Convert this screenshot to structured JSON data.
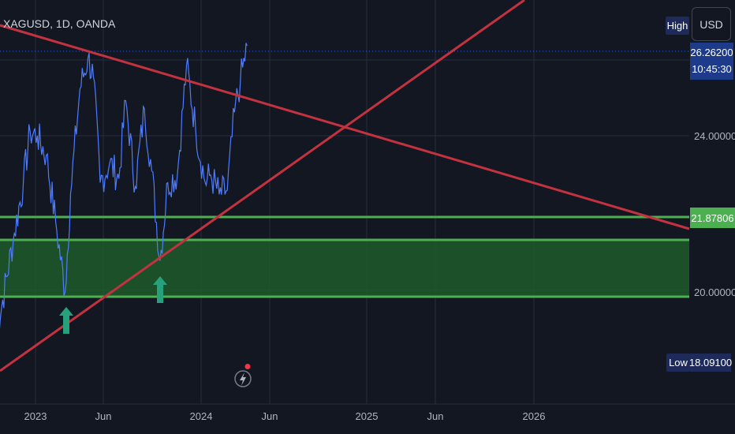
{
  "header": {
    "symbol": "XAGUSD, 1D, OANDA",
    "currency_button": "USD"
  },
  "price_scale": {
    "high_label": "High",
    "low_label": "Low",
    "low_value": "18.09100",
    "last_price": "26.26200",
    "countdown": "10:45:30",
    "ticks": [
      "24.00000",
      "20.00000"
    ],
    "support_level": "21.87806"
  },
  "colors": {
    "background": "#131722",
    "price_line": "#2962ff",
    "trendlines": "#c2323f",
    "zone": "#4caf50",
    "arrows": "#26a17b"
  },
  "icons": {
    "flash": "flash-icon",
    "arrow": "up-arrow-icon"
  },
  "chart_data": {
    "type": "line",
    "title": "XAGUSD, 1D, OANDA",
    "x_ticks": [
      "2023",
      "Jun",
      "2024",
      "Jun",
      "2025",
      "Jun",
      "2026"
    ],
    "y_ticks": [
      24.0,
      20.0
    ],
    "ylim": [
      17.4,
      27.6
    ],
    "grid": true,
    "series": [
      {
        "x": [
          "2022-10-01",
          "2022-10-20",
          "2022-11-15",
          "2022-12-05",
          "2022-12-20",
          "2023-01-05",
          "2023-01-25",
          "2023-02-15",
          "2023-03-08",
          "2023-03-20",
          "2023-04-10",
          "2023-04-28",
          "2023-05-10",
          "2023-05-25",
          "2023-06-15",
          "2023-07-05",
          "2023-07-20",
          "2023-08-10",
          "2023-08-30",
          "2023-09-15",
          "2023-10-03",
          "2023-10-20",
          "2023-11-10",
          "2023-11-30",
          "2023-12-20",
          "2024-01-10",
          "2024-01-22",
          "2024-02-10",
          "2024-02-28",
          "2024-03-15",
          "2024-03-28",
          "2024-04-12"
        ],
        "y": [
          18.2,
          19.8,
          21.5,
          22.8,
          24.1,
          24.0,
          23.5,
          21.8,
          20.0,
          22.5,
          25.2,
          26.0,
          25.5,
          22.8,
          23.3,
          22.9,
          24.9,
          22.7,
          24.7,
          23.1,
          20.8,
          22.8,
          23.0,
          25.8,
          24.2,
          22.8,
          23.0,
          22.5,
          22.6,
          24.6,
          25.4,
          26.3
        ]
      }
    ],
    "horizontal_levels": [
      21.87806
    ],
    "support_zone": [
      21.3,
      19.95
    ],
    "annotations": [
      "up-arrow",
      "up-arrow"
    ]
  }
}
